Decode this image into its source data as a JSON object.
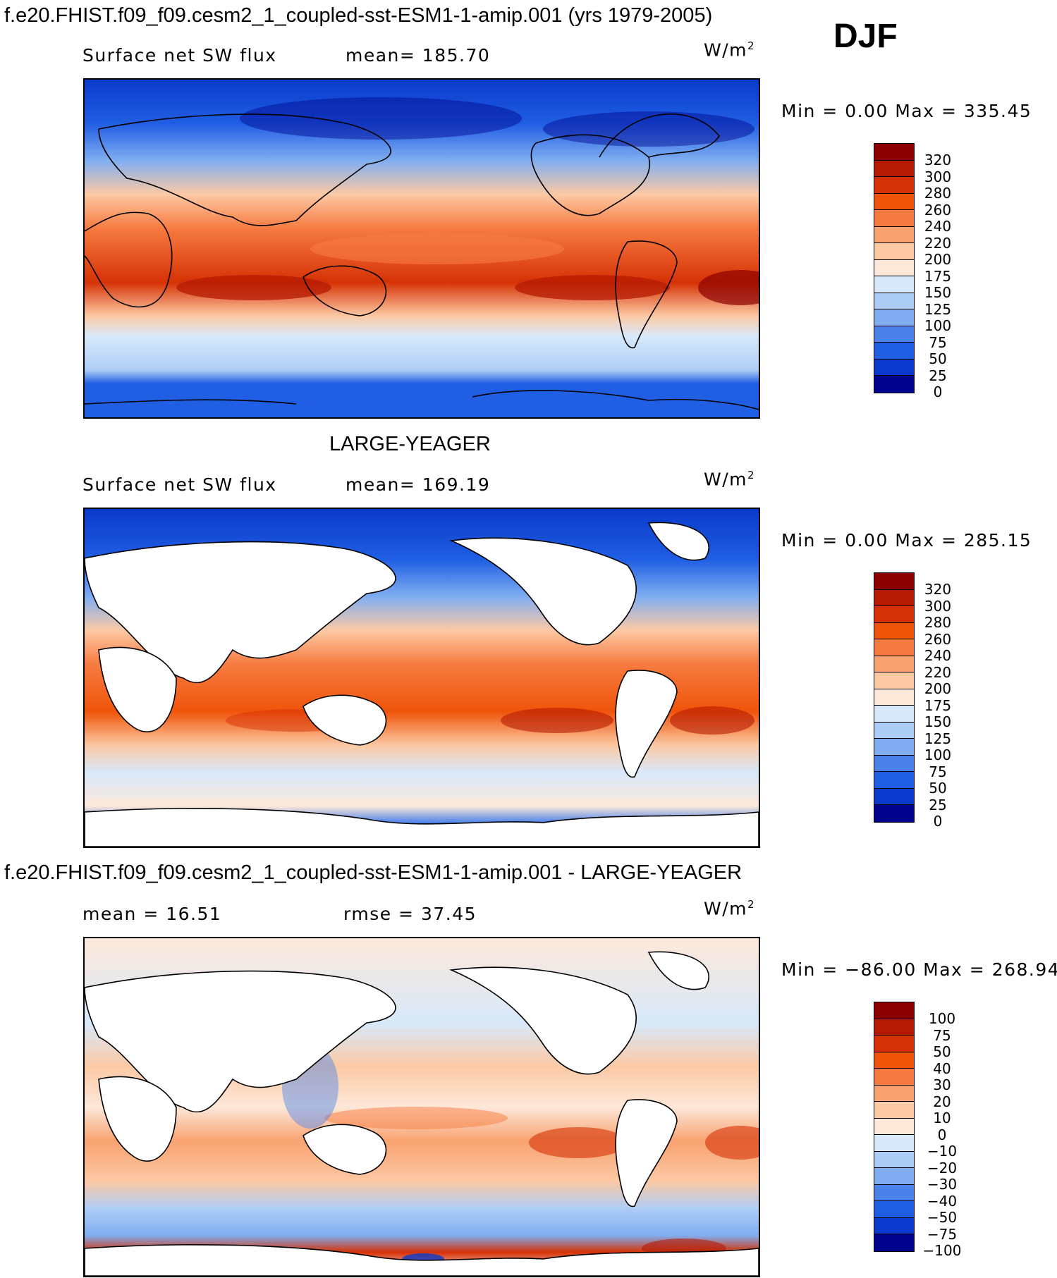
{
  "header": {
    "title": "f.e20.FHIST.f09_f09.cesm2_1_coupled-sst-ESM1-1-amip.001 (yrs 1979-2005)",
    "season": "DJF"
  },
  "panels": [
    {
      "id": "model",
      "title": "",
      "variable": "Surface net SW flux",
      "stat_text": "mean=  185.70",
      "units": "W/m",
      "units_sup": "2",
      "minmax": "Min  =      0.00  Max  =  335.45",
      "legend_levels": [
        "320",
        "300",
        "280",
        "260",
        "240",
        "220",
        "200",
        "175",
        "150",
        "125",
        "100",
        "75",
        "50",
        "25",
        "0"
      ],
      "legend_colors": [
        "#8b0000",
        "#b61a03",
        "#d63205",
        "#f0540a",
        "#f77b40",
        "#f9a270",
        "#fcc9a4",
        "#fde8d9",
        "#d7e9fb",
        "#aecdf6",
        "#80aef1",
        "#4a82ea",
        "#205ee3",
        "#0a3acb",
        "#00048d"
      ]
    },
    {
      "id": "obs",
      "title": "LARGE-YEAGER",
      "variable": "Surface net SW flux",
      "stat_text": "mean=  169.19",
      "units": "W/m",
      "units_sup": "2",
      "minmax": "Min  =      0.00  Max  =  285.15",
      "legend_levels": [
        "320",
        "300",
        "280",
        "260",
        "240",
        "220",
        "200",
        "175",
        "150",
        "125",
        "100",
        "75",
        "50",
        "25",
        "0"
      ],
      "legend_colors": [
        "#8b0000",
        "#b61a03",
        "#d63205",
        "#f0540a",
        "#f77b40",
        "#f9a270",
        "#fcc9a4",
        "#fde8d9",
        "#d7e9fb",
        "#aecdf6",
        "#80aef1",
        "#4a82ea",
        "#205ee3",
        "#0a3acb",
        "#00048d"
      ]
    },
    {
      "id": "diff",
      "title": "f.e20.FHIST.f09_f09.cesm2_1_coupled-sst-ESM1-1-amip.001 - LARGE-YEAGER",
      "variable": "mean  =    16.51",
      "stat_text": "rmse  =    37.45",
      "units": "W/m",
      "units_sup": "2",
      "minmax": "Min  = −86.00  Max  =  268.94",
      "legend_levels": [
        "100",
        "75",
        "50",
        "40",
        "30",
        "20",
        "10",
        "0",
        "−10",
        "−20",
        "−30",
        "−40",
        "−50",
        "−75",
        "−100"
      ],
      "legend_colors": [
        "#8b0000",
        "#b61a03",
        "#d63205",
        "#f0540a",
        "#f77b40",
        "#f9a270",
        "#fcc9a4",
        "#fde8d9",
        "#d7e9fb",
        "#aecdf6",
        "#80aef1",
        "#4a82ea",
        "#205ee3",
        "#0a3acb",
        "#00048d"
      ]
    }
  ]
}
